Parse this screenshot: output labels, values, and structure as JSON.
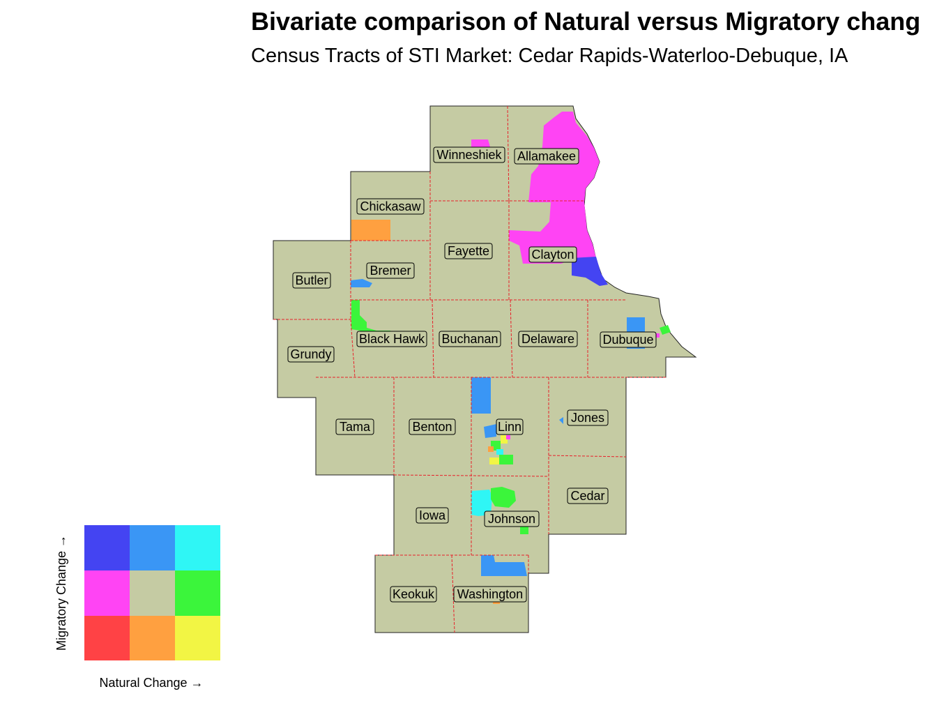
{
  "title": "Bivariate comparison of Natural versus Migratory chang",
  "subtitle": "Census Tracts of STI Market: Cedar Rapids-Waterloo-Debuque, IA",
  "colors": {
    "base": "#c5cba3",
    "boundary": "#e8202a",
    "outline": "#222222"
  },
  "legend": {
    "x_label": "Natural Change →",
    "y_label": "Migratory Change →",
    "grid_colors": [
      [
        "#4444f2",
        "#3a96f5",
        "#2ff6f5"
      ],
      [
        "#ff44f4",
        "#c5cba3",
        "#3bf53b"
      ],
      [
        "#ff4245",
        "#ffa040",
        "#f2f544"
      ]
    ]
  },
  "counties": [
    "Winneshiek",
    "Allamakee",
    "Chickasaw",
    "Fayette",
    "Clayton",
    "Butler",
    "Bremer",
    "Black Hawk",
    "Buchanan",
    "Delaware",
    "Dubuque",
    "Grundy",
    "Tama",
    "Benton",
    "Linn",
    "Jones",
    "Iowa",
    "Johnson",
    "Cedar",
    "Keokuk",
    "Washington"
  ]
}
